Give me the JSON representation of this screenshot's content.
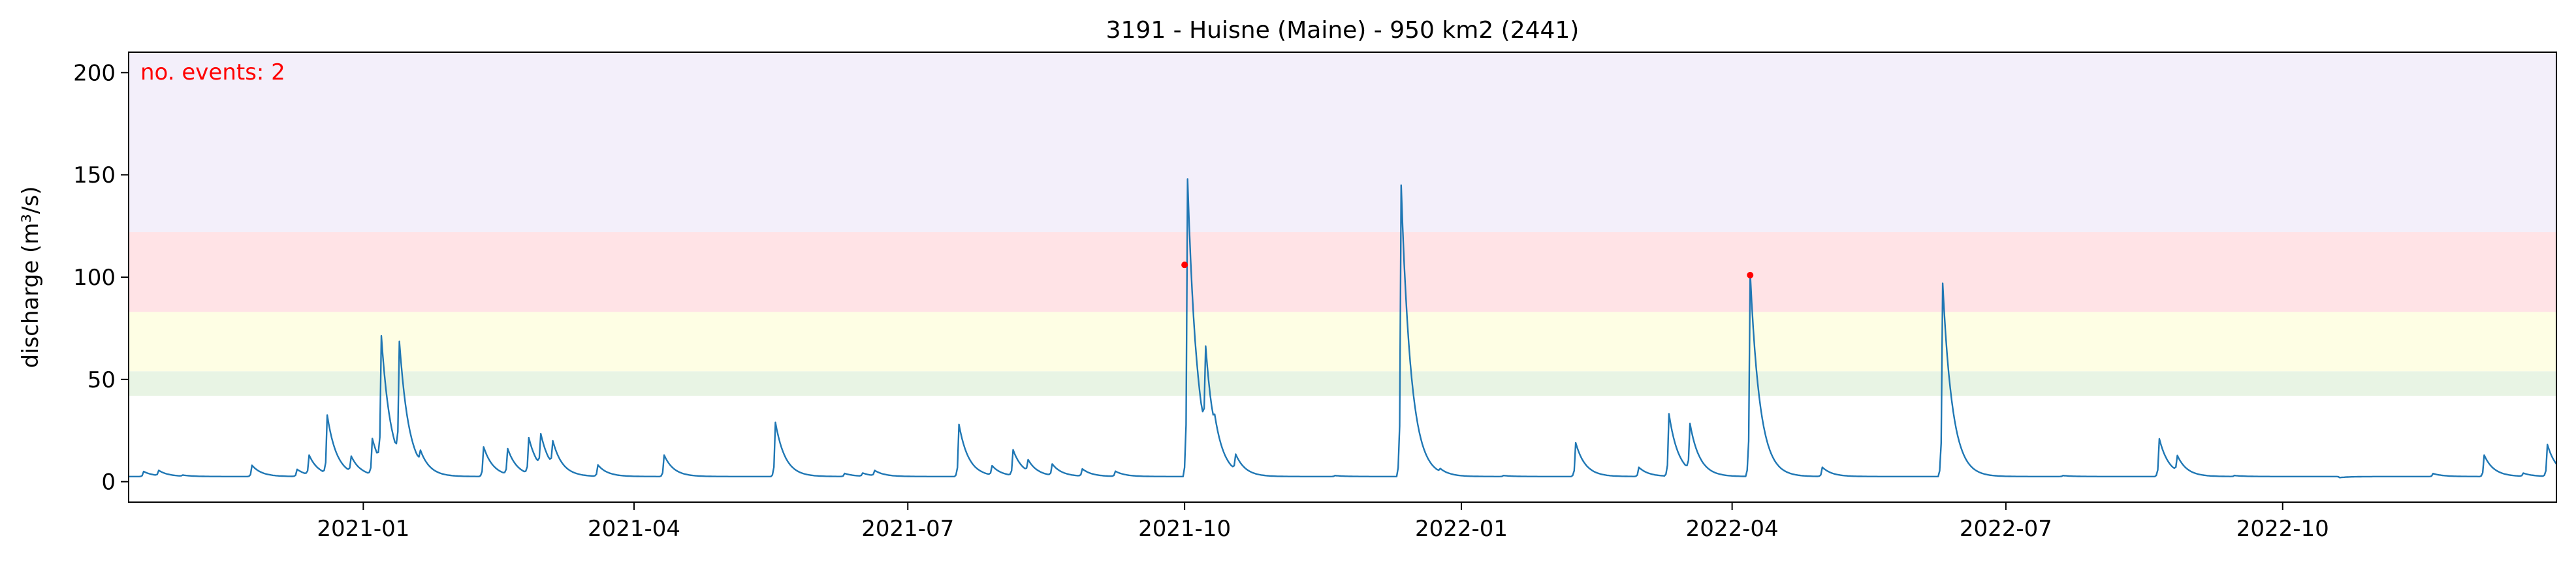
{
  "chart_data": {
    "type": "line",
    "title": "3191 - Huisne (Maine) - 950 km2 (2441)",
    "xlabel": "",
    "ylabel": "discharge (m³/s)",
    "annotation": "no. events: 2",
    "xlim": [
      "2020-10-15",
      "2022-12-31"
    ],
    "ylim": [
      -10,
      210
    ],
    "yticks": [
      0,
      50,
      100,
      150,
      200
    ],
    "xticks": [
      "2021-01-01",
      "2021-04-01",
      "2021-07-01",
      "2021-10-01",
      "2022-01-01",
      "2022-04-01",
      "2022-07-01",
      "2022-10-01"
    ],
    "xtick_labels": [
      "2021-01",
      "2021-04",
      "2021-07",
      "2021-10",
      "2022-01",
      "2022-04",
      "2022-07",
      "2022-10"
    ],
    "grid": false,
    "bands": [
      {
        "from": 42,
        "to": 54,
        "color": "#e8f4e4"
      },
      {
        "from": 54,
        "to": 83,
        "color": "#fefee4"
      },
      {
        "from": 83,
        "to": 122,
        "color": "#ffe3e6"
      },
      {
        "from": 122,
        "to": 210,
        "color": "#f3effa"
      }
    ],
    "series": [
      {
        "name": "",
        "color": "#1f77b4",
        "base": 2.5,
        "peaks": [
          [
            "2020-10-20",
            5
          ],
          [
            "2020-10-25",
            5
          ],
          [
            "2020-11-02",
            3
          ],
          [
            "2020-11-25",
            8
          ],
          [
            "2020-12-10",
            6
          ],
          [
            "2020-12-14",
            12
          ],
          [
            "2020-12-20",
            31
          ],
          [
            "2020-12-28",
            10
          ],
          [
            "2021-01-04",
            20
          ],
          [
            "2021-01-07",
            64
          ],
          [
            "2021-01-13",
            58
          ],
          [
            "2021-01-20",
            8
          ],
          [
            "2021-02-10",
            17
          ],
          [
            "2021-02-18",
            15
          ],
          [
            "2021-02-25",
            20
          ],
          [
            "2021-03-01",
            18
          ],
          [
            "2021-03-05",
            14
          ],
          [
            "2021-03-20",
            8
          ],
          [
            "2021-04-11",
            13
          ],
          [
            "2021-05-18",
            29
          ],
          [
            "2021-06-10",
            4
          ],
          [
            "2021-06-16",
            4
          ],
          [
            "2021-06-20",
            5
          ],
          [
            "2021-07-18",
            28
          ],
          [
            "2021-07-29",
            7
          ],
          [
            "2021-08-05",
            15
          ],
          [
            "2021-08-10",
            8
          ],
          [
            "2021-08-18",
            8
          ],
          [
            "2021-08-28",
            6
          ],
          [
            "2021-09-08",
            5
          ],
          [
            "2021-10-08",
            44
          ],
          [
            "2021-10-11",
            8
          ],
          [
            "2021-10-18",
            10
          ],
          [
            "2021-11-20",
            3
          ],
          [
            "2021-12-12",
            145
          ],
          [
            "2021-12-25",
            4
          ],
          [
            "2022-01-15",
            3
          ],
          [
            "2022-02-08",
            19
          ],
          [
            "2022-03-01",
            7
          ],
          [
            "2022-03-11",
            33
          ],
          [
            "2022-03-18",
            25
          ],
          [
            "2022-05-01",
            7
          ],
          [
            "2022-06-10",
            97
          ],
          [
            "2022-07-20",
            3
          ],
          [
            "2022-08-21",
            21
          ],
          [
            "2022-08-27",
            10
          ],
          [
            "2022-09-15",
            3
          ],
          [
            "2022-10-20",
            2
          ],
          [
            "2022-11-20",
            4
          ],
          [
            "2022-12-07",
            13
          ],
          [
            "2022-12-20",
            4
          ],
          [
            "2022-12-28",
            18
          ]
        ]
      }
    ],
    "event_markers": [
      {
        "x": "2021-10-01",
        "y": 106,
        "color": "#ff0000"
      },
      {
        "x": "2022-04-07",
        "y": 101,
        "color": "#ff0000"
      }
    ],
    "event_peaks": [
      [
        "2021-10-02",
        148,
        "2021-10-01",
        106
      ],
      [
        "2022-04-07",
        102,
        "2022-04-07",
        101
      ]
    ]
  }
}
